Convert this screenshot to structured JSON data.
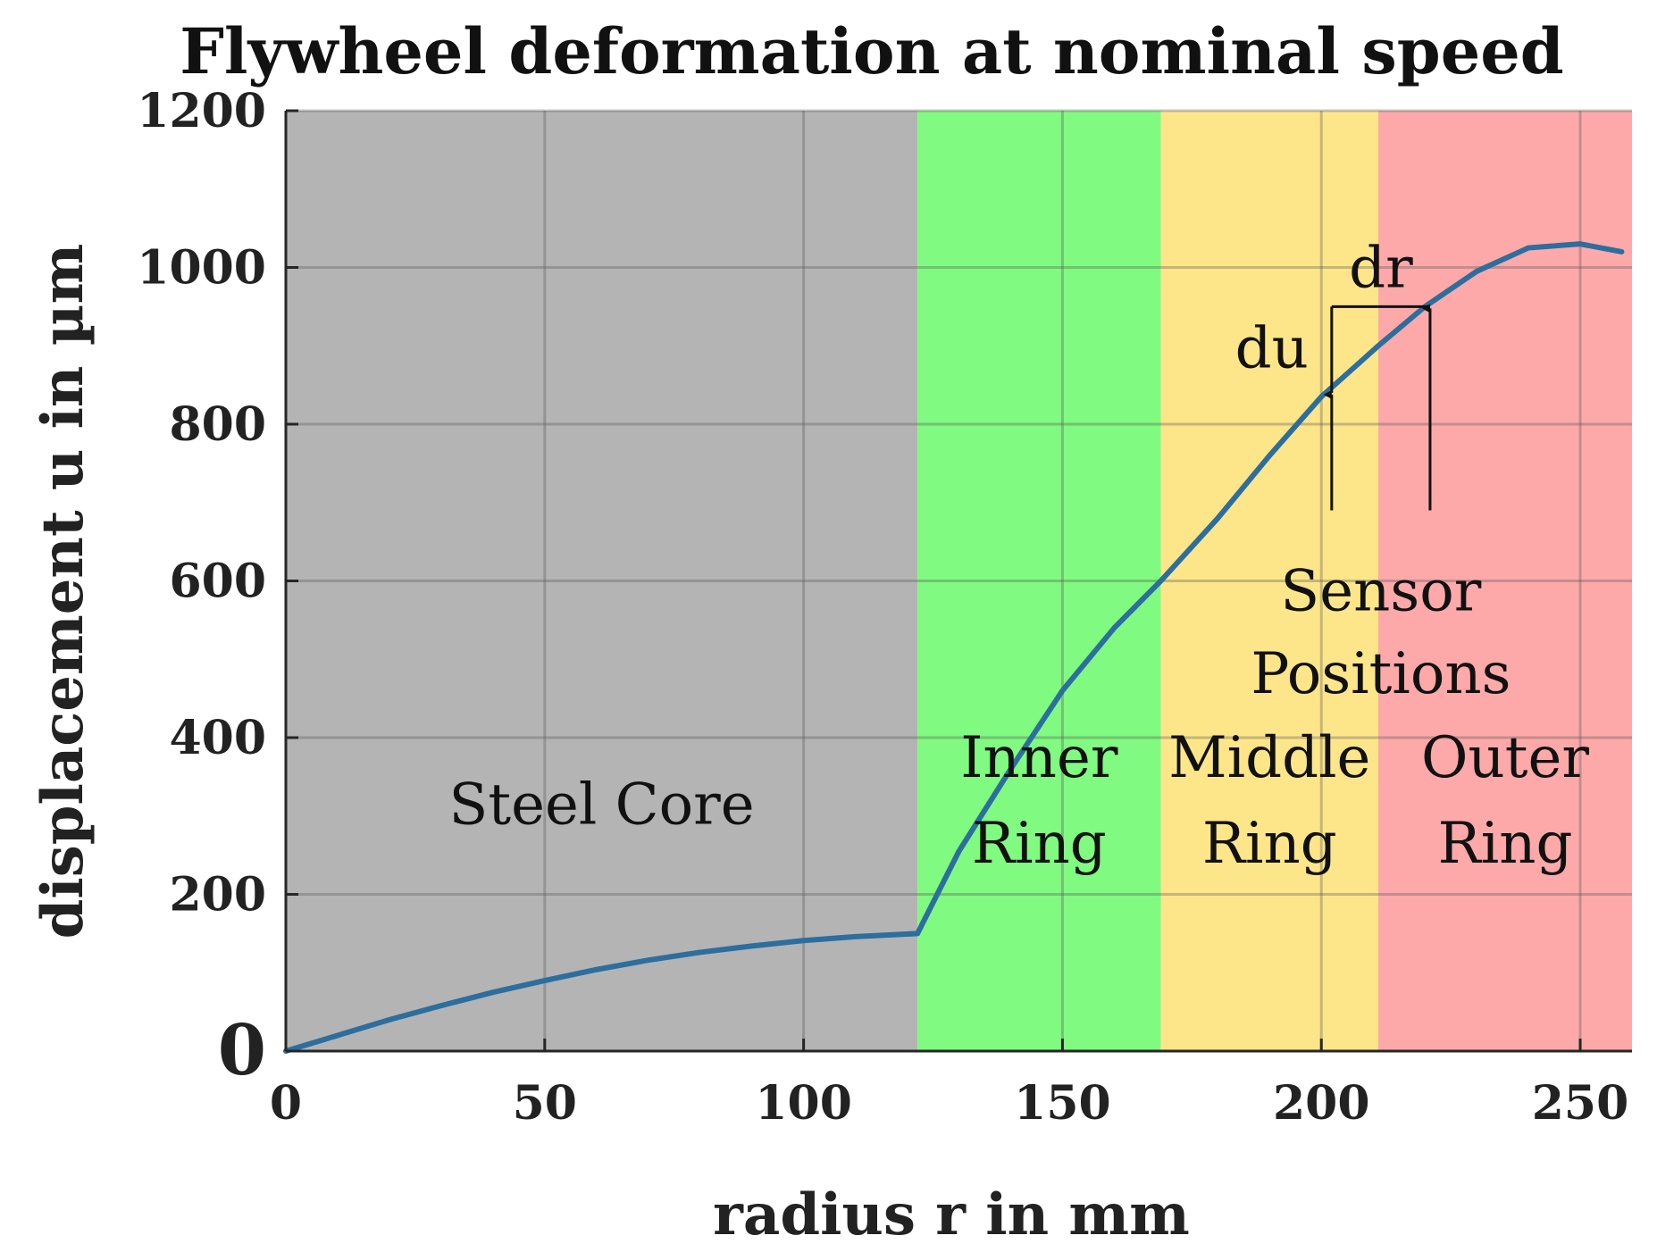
{
  "chart_data": {
    "type": "line",
    "title": "Flywheel deformation at nominal speed",
    "xlabel": "radius r in mm",
    "ylabel": "displacement u in µm",
    "xlim": [
      0,
      260
    ],
    "ylim": [
      0,
      1200
    ],
    "x_ticks": [
      0,
      50,
      100,
      150,
      200,
      250
    ],
    "y_ticks": [
      0,
      200,
      400,
      600,
      800,
      1000,
      1200
    ],
    "x_tick_labels": [
      "0",
      "50",
      "100",
      "150",
      "200",
      "250"
    ],
    "y_tick_labels": [
      "0",
      "200",
      "400",
      "600",
      "800",
      "1000",
      "1200"
    ],
    "grid": true,
    "regions": [
      {
        "name": "Steel Core",
        "label_lines": [
          "Steel Core"
        ],
        "x_range": [
          0,
          122
        ],
        "color": "#b4b4b4",
        "label_anchor": [
          61,
          290
        ]
      },
      {
        "name": "Inner Ring",
        "label_lines": [
          "Inner",
          "Ring"
        ],
        "x_range": [
          122,
          169
        ],
        "color": "#80fa80",
        "label_anchor": [
          145.5,
          350
        ]
      },
      {
        "name": "Middle Ring",
        "label_lines": [
          "Middle",
          "Ring"
        ],
        "x_range": [
          169,
          211
        ],
        "color": "#fde68a",
        "label_anchor": [
          190,
          350
        ]
      },
      {
        "name": "Outer Ring",
        "label_lines": [
          "Outer",
          "Ring"
        ],
        "x_range": [
          211,
          260
        ],
        "color": "#fda9a9",
        "label_anchor": [
          235.5,
          350
        ]
      }
    ],
    "series": [
      {
        "name": "displacement",
        "color": "#2c6e9e",
        "x": [
          0,
          10,
          20,
          30,
          40,
          50,
          60,
          70,
          80,
          90,
          100,
          110,
          122,
          130,
          140,
          150,
          160,
          169,
          180,
          190,
          200,
          211,
          220,
          230,
          240,
          250,
          258
        ],
        "y": [
          0,
          20,
          40,
          58,
          75,
          90,
          104,
          116,
          126,
          134,
          141,
          146,
          150,
          255,
          360,
          460,
          540,
          600,
          680,
          760,
          835,
          900,
          950,
          995,
          1025,
          1030,
          1020
        ]
      }
    ],
    "annotations": {
      "du_label": "du",
      "dr_label": "dr",
      "sensor_label_lines": [
        "Sensor",
        "Positions"
      ],
      "sensor_positions_x": [
        202,
        221
      ],
      "sensor_values_y": [
        840,
        950
      ],
      "arrow_tail_y": 690
    }
  }
}
